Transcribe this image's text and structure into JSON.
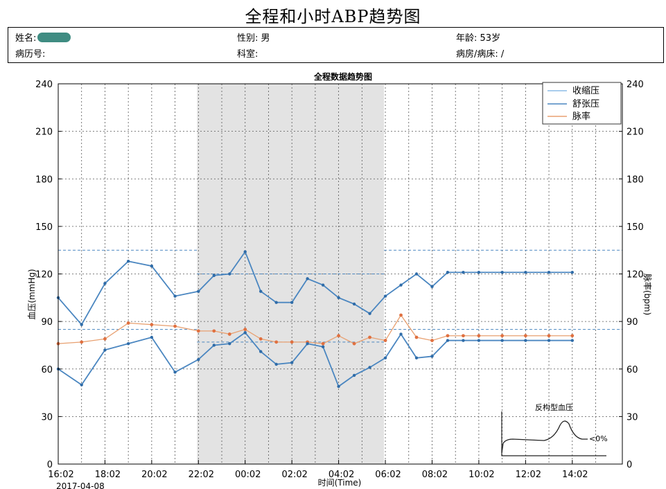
{
  "page_title": "全程和小时ABP趋势图",
  "patient": {
    "name_label": "姓名:",
    "sex_label": "性别:",
    "sex_value": "男",
    "age_label": "年龄:",
    "age_value": "53岁",
    "record_label": "病历号:",
    "dept_label": "科室:",
    "ward_label": "病房/病床:",
    "ward_value": "/"
  },
  "chart_data": {
    "type": "line",
    "title": "全程数据趋势图",
    "ylabel": "血压(mmHg)",
    "y2label": "脉率(bpm)",
    "xlabel": "时间(Time)",
    "date_label": "2017-04-08",
    "ylim": [
      0,
      240
    ],
    "y2lim": [
      0,
      240
    ],
    "yticks": [
      0,
      30,
      60,
      90,
      120,
      150,
      180,
      210,
      240
    ],
    "xticks": [
      "16:02",
      "18:02",
      "20:02",
      "22:02",
      "00:02",
      "02:02",
      "04:02",
      "06:02",
      "08:02",
      "10:02",
      "12:02",
      "14:02"
    ],
    "grid": true,
    "legend_position": "top-right",
    "night_period": {
      "start": "22:02",
      "end": "06:02"
    },
    "reference_lines": {
      "systolic_day": 135,
      "systolic_night": 120,
      "diastolic_day": 85,
      "diastolic_night": 77
    },
    "x": [
      "16:02",
      "17:02",
      "18:02",
      "19:02",
      "20:02",
      "21:02",
      "22:02",
      "22:42",
      "23:22",
      "00:02",
      "00:42",
      "01:22",
      "02:02",
      "02:42",
      "03:22",
      "04:02",
      "04:42",
      "05:22",
      "06:02",
      "06:42",
      "07:22",
      "08:02",
      "08:42",
      "09:22",
      "10:02",
      "11:02",
      "12:02",
      "13:02",
      "14:02"
    ],
    "series": [
      {
        "name": "收缩压",
        "color": "#4a86c0",
        "values": [
          105,
          88,
          114,
          128,
          125,
          106,
          109,
          119,
          120,
          134,
          109,
          102,
          102,
          117,
          113,
          105,
          101,
          95,
          106,
          113,
          120,
          112,
          121,
          121,
          121,
          121,
          121,
          121,
          121
        ]
      },
      {
        "name": "舒张压",
        "color": "#4a86c0",
        "values": [
          60,
          50,
          72,
          76,
          80,
          58,
          66,
          75,
          76,
          83,
          71,
          63,
          64,
          76,
          74,
          49,
          56,
          61,
          67,
          82,
          67,
          68,
          78,
          78,
          78,
          78,
          78,
          78,
          78
        ]
      },
      {
        "name": "脉率",
        "color": "#e8a070",
        "values": [
          76,
          77,
          79,
          89,
          88,
          87,
          84,
          84,
          82,
          85,
          79,
          77,
          77,
          77,
          76,
          81,
          76,
          80,
          78,
          94,
          80,
          78,
          81,
          81,
          81,
          81,
          81,
          81,
          81
        ]
      }
    ],
    "inset": {
      "title": "反构型血压",
      "label": "<0%"
    }
  }
}
